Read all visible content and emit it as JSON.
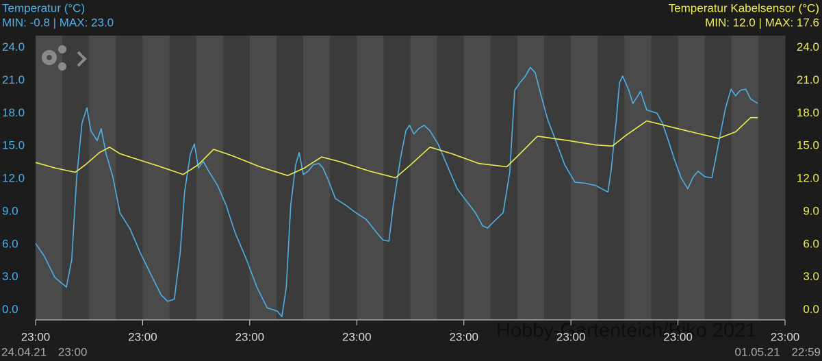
{
  "chart_data": {
    "type": "line",
    "title_left": "Temperatur (°C)",
    "subtitle_left": "MIN: -0.8 | MAX: 23.0",
    "title_right": "Temperatur Kabelsensor (°C)",
    "subtitle_right": "MIN: 12.0 | MAX: 17.6",
    "watermark": "Hobby-Gartenteich/Biko 2021",
    "x_start_label": "24.04.21 23:00",
    "x_end_label": "01.05.21 22:59",
    "xlim": [
      0,
      168
    ],
    "xticks": [
      {
        "value": 0,
        "label": "23:00"
      },
      {
        "value": 24,
        "label": "23:00"
      },
      {
        "value": 48,
        "label": "23:00"
      },
      {
        "value": 72,
        "label": "23:00"
      },
      {
        "value": 96,
        "label": "23:00"
      },
      {
        "value": 120,
        "label": "23:00"
      },
      {
        "value": 144,
        "label": "23:00"
      },
      {
        "value": 168,
        "label": "23:00"
      }
    ],
    "ylim": [
      -0.9,
      25.1
    ],
    "yticks": [
      {
        "value": 0,
        "label": "0.0"
      },
      {
        "value": 3,
        "label": "3.0"
      },
      {
        "value": 6,
        "label": "6.0"
      },
      {
        "value": 9,
        "label": "9.0"
      },
      {
        "value": 12,
        "label": "12.0"
      },
      {
        "value": 15,
        "label": "15.0"
      },
      {
        "value": 18,
        "label": "18.0"
      },
      {
        "value": 21,
        "label": "21.0"
      },
      {
        "value": 24,
        "label": "24.0"
      }
    ],
    "y2lim": [
      -0.9,
      25.1
    ],
    "y2ticks": [
      {
        "value": 0,
        "label": "0.0"
      },
      {
        "value": 3,
        "label": "3.0"
      },
      {
        "value": 6,
        "label": "6.0"
      },
      {
        "value": 9,
        "label": "9.0"
      },
      {
        "value": 12,
        "label": "12.0"
      },
      {
        "value": 15,
        "label": "15.0"
      },
      {
        "value": 18,
        "label": "18.0"
      },
      {
        "value": 21,
        "label": "21.0"
      },
      {
        "value": 24,
        "label": "24.0"
      }
    ],
    "series": [
      {
        "name": "Temperatur (°C)",
        "color": "#4fb0e6",
        "x": [
          0,
          2.0,
          4.3,
          6.9,
          8.1,
          9.2,
          10.4,
          11.5,
          12.4,
          13.8,
          14.7,
          15.8,
          17.3,
          18.9,
          21.2,
          23.5,
          25.8,
          28.1,
          29.6,
          31.1,
          32.4,
          33.4,
          34.7,
          35.6,
          36.5,
          37.6,
          38.8,
          40.8,
          42.7,
          44.7,
          47.3,
          49.6,
          51.9,
          54.2,
          55.2,
          56.2,
          57.2,
          58.3,
          59.1,
          60.0,
          61.1,
          62.3,
          63.5,
          64.4,
          65.7,
          67.2,
          69.5,
          71.8,
          74.1,
          76.4,
          77.9,
          79.2,
          80.2,
          81.8,
          83.0,
          83.8,
          84.8,
          85.9,
          87.1,
          88.4,
          90.2,
          92.5,
          94.5,
          96.7,
          98.6,
          100.2,
          101.3,
          102.5,
          104.8,
          106.3,
          107.4,
          108.6,
          109.8,
          110.9,
          112.0,
          113.2,
          114.8,
          116.6,
          118.6,
          120.9,
          123.2,
          125.5,
          128.3,
          129.0,
          130.1,
          130.9,
          131.6,
          132.9,
          133.9,
          135.0,
          135.6,
          137.0,
          139.3,
          140.5,
          141.6,
          143.1,
          144.7,
          146.2,
          147.3,
          148.5,
          150.0,
          151.6,
          152.8,
          154.6,
          155.9,
          156.9,
          158.0,
          159.2,
          160.3,
          161.9
        ],
        "values": [
          6.1,
          4.9,
          3.0,
          2.1,
          4.6,
          12.1,
          17.1,
          18.5,
          16.4,
          15.5,
          16.6,
          14.3,
          12.2,
          8.9,
          7.4,
          5.2,
          3.3,
          1.4,
          0.8,
          1.0,
          5.2,
          10.8,
          14.3,
          15.2,
          13.0,
          13.6,
          12.7,
          11.4,
          9.6,
          7.1,
          4.6,
          2.1,
          0.2,
          -0.1,
          -0.6,
          2.1,
          9.6,
          13.3,
          14.4,
          12.4,
          12.7,
          13.3,
          13.4,
          13.0,
          11.8,
          10.2,
          9.6,
          8.9,
          8.3,
          7.1,
          6.4,
          6.3,
          9.6,
          13.9,
          16.4,
          16.9,
          16.1,
          16.6,
          16.9,
          16.4,
          15.2,
          13.0,
          11.1,
          9.9,
          8.9,
          7.7,
          7.5,
          8.0,
          8.9,
          12.6,
          20.1,
          20.8,
          21.4,
          22.2,
          21.7,
          19.8,
          17.4,
          15.5,
          13.3,
          11.7,
          11.6,
          11.4,
          10.8,
          12.7,
          17.1,
          20.8,
          21.4,
          20.2,
          18.9,
          19.6,
          20.0,
          18.3,
          18.0,
          17.1,
          15.8,
          13.9,
          12.1,
          11.1,
          12.1,
          12.7,
          12.2,
          12.1,
          14.6,
          18.4,
          20.2,
          19.6,
          20.1,
          20.2,
          19.3,
          18.9
        ]
      },
      {
        "name": "Temperatur Kabelsensor (°C)",
        "color": "#eeee50",
        "axis": "y2",
        "x": [
          0,
          4.3,
          8.9,
          11.2,
          14.3,
          16.6,
          18.9,
          22.7,
          27.3,
          33.1,
          36.5,
          39.9,
          44.2,
          50.3,
          56.5,
          60.3,
          64.1,
          68.0,
          74.9,
          80.7,
          84.1,
          88.4,
          93.3,
          99.4,
          105.6,
          108.6,
          112.5,
          119.4,
          125.5,
          129.3,
          132.4,
          137.0,
          143.9,
          153.1,
          156.9,
          160.3,
          161.9
        ],
        "values": [
          13.5,
          13.0,
          12.6,
          13.3,
          14.4,
          14.9,
          14.3,
          13.8,
          13.2,
          12.4,
          13.3,
          14.7,
          14.1,
          13.1,
          12.3,
          13.0,
          14.0,
          13.6,
          12.7,
          12.1,
          13.3,
          14.9,
          14.3,
          13.4,
          13.1,
          14.3,
          15.9,
          15.5,
          15.1,
          15.0,
          16.0,
          17.3,
          16.6,
          15.7,
          16.3,
          17.6,
          17.6
        ]
      }
    ]
  }
}
